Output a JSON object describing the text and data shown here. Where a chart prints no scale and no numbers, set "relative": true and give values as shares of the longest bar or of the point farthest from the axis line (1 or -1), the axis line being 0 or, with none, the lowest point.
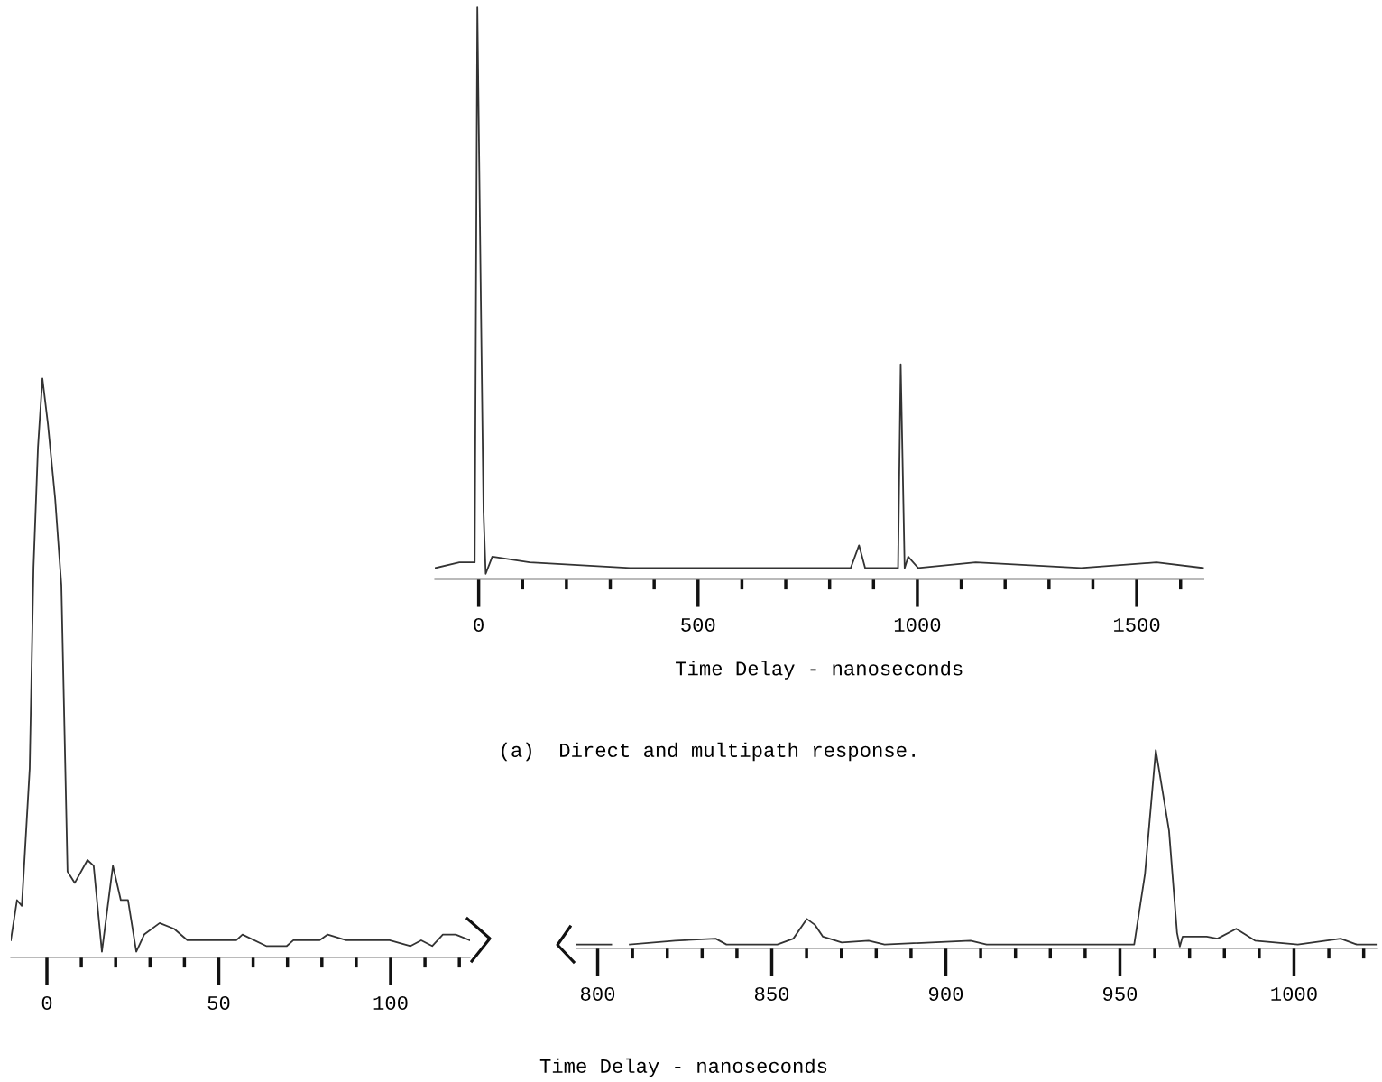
{
  "chart_data": [
    {
      "type": "line",
      "relative": true,
      "xlabel": "Time Delay - nanoseconds",
      "annotations": [
        "(a)  Direct and multipath response."
      ],
      "xlim": [
        -100,
        1653
      ],
      "xticks": [
        0,
        {
          "value": 100,
          "label": null
        },
        {
          "value": 200,
          "label": null
        },
        {
          "value": 300,
          "label": null
        },
        {
          "value": 400,
          "label": null
        },
        500,
        {
          "value": 600,
          "label": null
        },
        {
          "value": 700,
          "label": null
        },
        {
          "value": 800,
          "label": null
        },
        {
          "value": 900,
          "label": null
        },
        1000,
        {
          "value": 1100,
          "label": null
        },
        {
          "value": 1200,
          "label": null
        },
        {
          "value": 1300,
          "label": null
        },
        {
          "value": 1400,
          "label": null
        },
        1500,
        {
          "value": 1600,
          "label": null
        }
      ],
      "series": [
        {
          "color": "#333333",
          "x": [
            -100,
            -44,
            -9,
            -3,
            5,
            11,
            16,
            31,
            116,
            345,
            688,
            848,
            867,
            881,
            956,
            962,
            971,
            979,
            1002,
            1133,
            1373,
            1545,
            1653
          ],
          "values": [
            0.01,
            0.02,
            0.02,
            1.0,
            0.48,
            0.11,
            0.0,
            0.03,
            0.02,
            0.01,
            0.01,
            0.01,
            0.05,
            0.01,
            0.01,
            0.37,
            0.01,
            0.03,
            0.01,
            0.02,
            0.01,
            0.02,
            0.01
          ]
        }
      ]
    },
    {
      "type": "line",
      "relative": true,
      "xlabel": "Time Delay - nanoseconds",
      "xlim": [
        -10.5,
        123.1
      ],
      "xticks": [
        0,
        {
          "value": 10,
          "label": null
        },
        {
          "value": 20,
          "label": null
        },
        {
          "value": 30,
          "label": null
        },
        {
          "value": 40,
          "label": null
        },
        50,
        {
          "value": 60,
          "label": null
        },
        {
          "value": 70,
          "label": null
        },
        {
          "value": 80,
          "label": null
        },
        {
          "value": 90,
          "label": null
        },
        100,
        {
          "value": 110,
          "label": null
        },
        {
          "value": 120,
          "label": null
        }
      ],
      "series": [
        {
          "color": "#333333",
          "x": [
            -10.5,
            -8.7,
            -7.3,
            -5.0,
            -3.9,
            -2.6,
            -1.3,
            0.3,
            2.4,
            4.2,
            6.0,
            8.1,
            11.8,
            13.6,
            16.0,
            19.2,
            21.5,
            23.6,
            26.0,
            28.3,
            32.8,
            37.0,
            40.9,
            45.7,
            55.1,
            56.9,
            63.8,
            69.8,
            71.7,
            79.3,
            81.7,
            87.1,
            99.7,
            105.8,
            108.9,
            112.1,
            115.2,
            118.9,
            123.1
          ],
          "values": [
            0.02,
            0.09,
            0.08,
            0.32,
            0.67,
            0.88,
            1.0,
            0.92,
            0.79,
            0.64,
            0.14,
            0.12,
            0.16,
            0.15,
            0.0,
            0.15,
            0.09,
            0.09,
            0.0,
            0.03,
            0.05,
            0.04,
            0.02,
            0.02,
            0.02,
            0.03,
            0.01,
            0.01,
            0.02,
            0.02,
            0.03,
            0.02,
            0.02,
            0.01,
            0.02,
            0.01,
            0.03,
            0.03,
            0.02
          ]
        }
      ]
    },
    {
      "type": "line",
      "relative": true,
      "xlim": [
        793.8,
        1024
      ],
      "xticks": [
        800,
        {
          "value": 810,
          "label": null
        },
        {
          "value": 820,
          "label": null
        },
        {
          "value": 830,
          "label": null
        },
        {
          "value": 840,
          "label": null
        },
        850,
        {
          "value": 860,
          "label": null
        },
        {
          "value": 870,
          "label": null
        },
        {
          "value": 880,
          "label": null
        },
        {
          "value": 890,
          "label": null
        },
        900,
        {
          "value": 910,
          "label": null
        },
        {
          "value": 920,
          "label": null
        },
        {
          "value": 930,
          "label": null
        },
        {
          "value": 940,
          "label": null
        },
        950,
        {
          "value": 960,
          "label": null
        },
        {
          "value": 970,
          "label": null
        },
        {
          "value": 980,
          "label": null
        },
        {
          "value": 990,
          "label": null
        },
        1000,
        {
          "value": 1010,
          "label": null
        },
        {
          "value": 1020,
          "label": null
        }
      ],
      "series": [
        {
          "color": "#333333",
          "x": [
            793.8,
            803.9,
            806.5,
            809.2,
            822.3,
            833.9,
            837.0,
            851.6,
            856.2,
            860.1,
            862.4,
            864.7,
            870.1,
            877.8,
            882.4,
            907.1,
            911.7,
            954.1,
            957.2,
            960.3,
            964.1,
            966.4,
            967.2,
            968.0,
            974.9,
            978.0,
            983.4,
            988.8,
            1001.1,
            1013.4,
            1018.0,
            1024.0
          ],
          "values": [
            0.01,
            0.01,
            null,
            0.01,
            0.03,
            0.04,
            0.01,
            0.01,
            0.04,
            0.14,
            0.11,
            0.05,
            0.02,
            0.03,
            0.01,
            0.03,
            0.01,
            0.01,
            0.37,
            1.0,
            0.59,
            0.07,
            0.0,
            0.05,
            0.05,
            0.04,
            0.09,
            0.03,
            0.01,
            0.04,
            0.01,
            0.01
          ]
        }
      ]
    }
  ]
}
